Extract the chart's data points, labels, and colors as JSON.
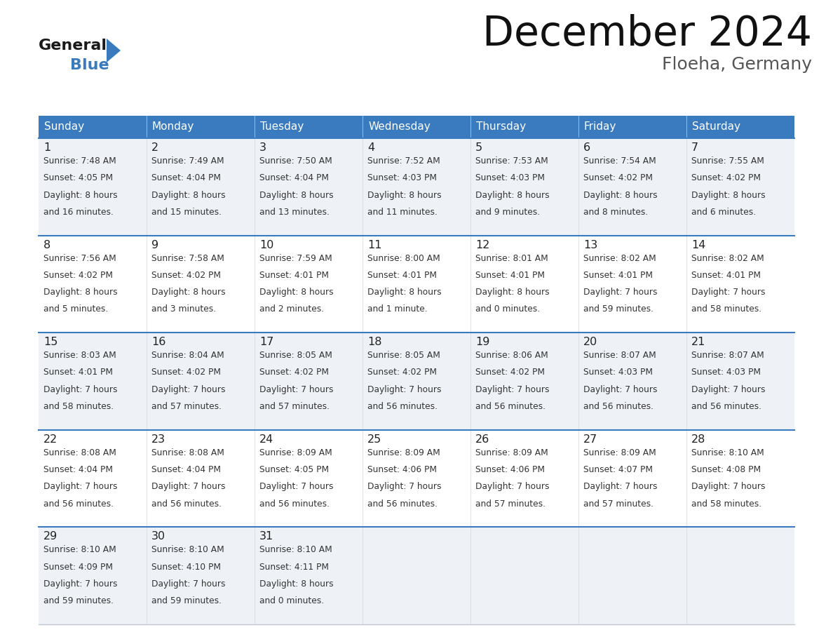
{
  "title": "December 2024",
  "subtitle": "Floeha, Germany",
  "header_color": "#3a7bbf",
  "header_text_color": "#ffffff",
  "bg_color": "#ffffff",
  "cell_bg_light": "#eef2f7",
  "cell_bg_white": "#ffffff",
  "text_color": "#333333",
  "day_num_color": "#222222",
  "separator_color": "#3a7bbf",
  "border_color": "#c0c8d0",
  "days_of_week": [
    "Sunday",
    "Monday",
    "Tuesday",
    "Wednesday",
    "Thursday",
    "Friday",
    "Saturday"
  ],
  "calendar_data": [
    [
      {
        "day": 1,
        "sunrise": "7:48 AM",
        "sunset": "4:05 PM",
        "daylight_h": "8 hours",
        "daylight_m": "and 16 minutes."
      },
      {
        "day": 2,
        "sunrise": "7:49 AM",
        "sunset": "4:04 PM",
        "daylight_h": "8 hours",
        "daylight_m": "and 15 minutes."
      },
      {
        "day": 3,
        "sunrise": "7:50 AM",
        "sunset": "4:04 PM",
        "daylight_h": "8 hours",
        "daylight_m": "and 13 minutes."
      },
      {
        "day": 4,
        "sunrise": "7:52 AM",
        "sunset": "4:03 PM",
        "daylight_h": "8 hours",
        "daylight_m": "and 11 minutes."
      },
      {
        "day": 5,
        "sunrise": "7:53 AM",
        "sunset": "4:03 PM",
        "daylight_h": "8 hours",
        "daylight_m": "and 9 minutes."
      },
      {
        "day": 6,
        "sunrise": "7:54 AM",
        "sunset": "4:02 PM",
        "daylight_h": "8 hours",
        "daylight_m": "and 8 minutes."
      },
      {
        "day": 7,
        "sunrise": "7:55 AM",
        "sunset": "4:02 PM",
        "daylight_h": "8 hours",
        "daylight_m": "and 6 minutes."
      }
    ],
    [
      {
        "day": 8,
        "sunrise": "7:56 AM",
        "sunset": "4:02 PM",
        "daylight_h": "8 hours",
        "daylight_m": "and 5 minutes."
      },
      {
        "day": 9,
        "sunrise": "7:58 AM",
        "sunset": "4:02 PM",
        "daylight_h": "8 hours",
        "daylight_m": "and 3 minutes."
      },
      {
        "day": 10,
        "sunrise": "7:59 AM",
        "sunset": "4:01 PM",
        "daylight_h": "8 hours",
        "daylight_m": "and 2 minutes."
      },
      {
        "day": 11,
        "sunrise": "8:00 AM",
        "sunset": "4:01 PM",
        "daylight_h": "8 hours",
        "daylight_m": "and 1 minute."
      },
      {
        "day": 12,
        "sunrise": "8:01 AM",
        "sunset": "4:01 PM",
        "daylight_h": "8 hours",
        "daylight_m": "and 0 minutes."
      },
      {
        "day": 13,
        "sunrise": "8:02 AM",
        "sunset": "4:01 PM",
        "daylight_h": "7 hours",
        "daylight_m": "and 59 minutes."
      },
      {
        "day": 14,
        "sunrise": "8:02 AM",
        "sunset": "4:01 PM",
        "daylight_h": "7 hours",
        "daylight_m": "and 58 minutes."
      }
    ],
    [
      {
        "day": 15,
        "sunrise": "8:03 AM",
        "sunset": "4:01 PM",
        "daylight_h": "7 hours",
        "daylight_m": "and 58 minutes."
      },
      {
        "day": 16,
        "sunrise": "8:04 AM",
        "sunset": "4:02 PM",
        "daylight_h": "7 hours",
        "daylight_m": "and 57 minutes."
      },
      {
        "day": 17,
        "sunrise": "8:05 AM",
        "sunset": "4:02 PM",
        "daylight_h": "7 hours",
        "daylight_m": "and 57 minutes."
      },
      {
        "day": 18,
        "sunrise": "8:05 AM",
        "sunset": "4:02 PM",
        "daylight_h": "7 hours",
        "daylight_m": "and 56 minutes."
      },
      {
        "day": 19,
        "sunrise": "8:06 AM",
        "sunset": "4:02 PM",
        "daylight_h": "7 hours",
        "daylight_m": "and 56 minutes."
      },
      {
        "day": 20,
        "sunrise": "8:07 AM",
        "sunset": "4:03 PM",
        "daylight_h": "7 hours",
        "daylight_m": "and 56 minutes."
      },
      {
        "day": 21,
        "sunrise": "8:07 AM",
        "sunset": "4:03 PM",
        "daylight_h": "7 hours",
        "daylight_m": "and 56 minutes."
      }
    ],
    [
      {
        "day": 22,
        "sunrise": "8:08 AM",
        "sunset": "4:04 PM",
        "daylight_h": "7 hours",
        "daylight_m": "and 56 minutes."
      },
      {
        "day": 23,
        "sunrise": "8:08 AM",
        "sunset": "4:04 PM",
        "daylight_h": "7 hours",
        "daylight_m": "and 56 minutes."
      },
      {
        "day": 24,
        "sunrise": "8:09 AM",
        "sunset": "4:05 PM",
        "daylight_h": "7 hours",
        "daylight_m": "and 56 minutes."
      },
      {
        "day": 25,
        "sunrise": "8:09 AM",
        "sunset": "4:06 PM",
        "daylight_h": "7 hours",
        "daylight_m": "and 56 minutes."
      },
      {
        "day": 26,
        "sunrise": "8:09 AM",
        "sunset": "4:06 PM",
        "daylight_h": "7 hours",
        "daylight_m": "and 57 minutes."
      },
      {
        "day": 27,
        "sunrise": "8:09 AM",
        "sunset": "4:07 PM",
        "daylight_h": "7 hours",
        "daylight_m": "and 57 minutes."
      },
      {
        "day": 28,
        "sunrise": "8:10 AM",
        "sunset": "4:08 PM",
        "daylight_h": "7 hours",
        "daylight_m": "and 58 minutes."
      }
    ],
    [
      {
        "day": 29,
        "sunrise": "8:10 AM",
        "sunset": "4:09 PM",
        "daylight_h": "7 hours",
        "daylight_m": "and 59 minutes."
      },
      {
        "day": 30,
        "sunrise": "8:10 AM",
        "sunset": "4:10 PM",
        "daylight_h": "7 hours",
        "daylight_m": "and 59 minutes."
      },
      {
        "day": 31,
        "sunrise": "8:10 AM",
        "sunset": "4:11 PM",
        "daylight_h": "8 hours",
        "daylight_m": "and 0 minutes."
      },
      null,
      null,
      null,
      null
    ]
  ]
}
